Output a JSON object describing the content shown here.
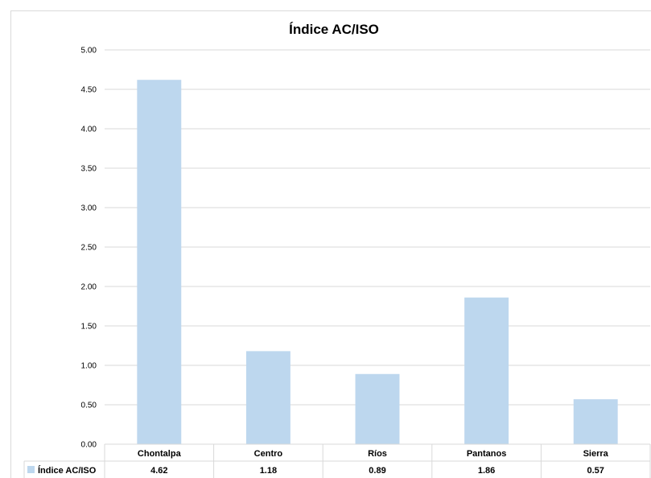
{
  "chart_data": {
    "type": "bar",
    "title": "Índice AC/ISO",
    "categories": [
      "Chontalpa",
      "Centro",
      "Ríos",
      "Pantanos",
      "Sierra"
    ],
    "series": [
      {
        "name": "Índice AC/ISO",
        "values": [
          4.62,
          1.18,
          0.89,
          1.86,
          0.57
        ],
        "color": "#bdd7ee"
      }
    ],
    "data_labels": [
      "4.62",
      "1.18",
      "0.89",
      "1.86",
      "0.57"
    ],
    "ylim": [
      0,
      5
    ],
    "yticks": [
      "0.00",
      "0.50",
      "1.00",
      "1.50",
      "2.00",
      "2.50",
      "3.00",
      "3.50",
      "4.00",
      "4.50",
      "5.00"
    ],
    "grid": true,
    "legend": "data-table-left",
    "gridline_color": "#d9d9d9"
  }
}
